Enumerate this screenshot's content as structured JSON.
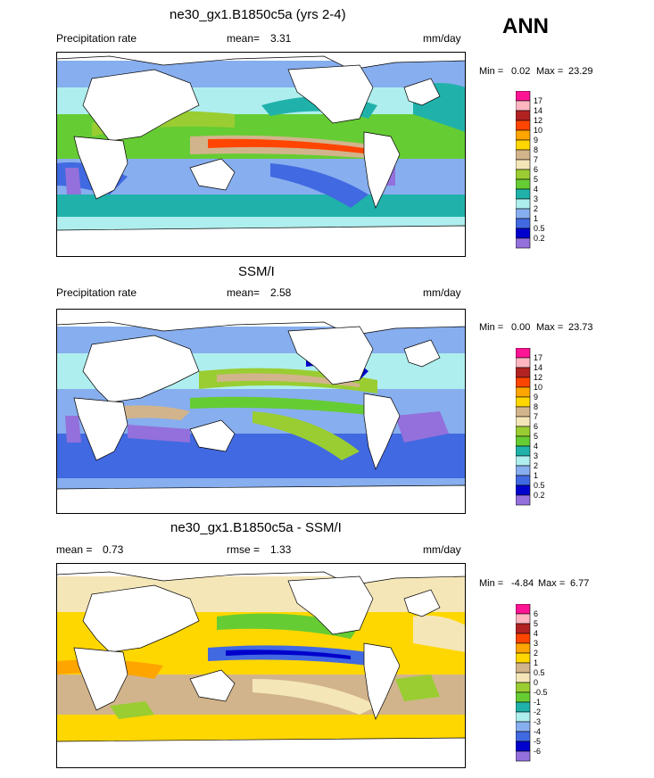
{
  "badge": "ANN",
  "panels": [
    {
      "title": "ne30_gx1.B1850c5a (yrs 2-4)",
      "left_label": "Precipitation rate",
      "mean_label": "mean=",
      "mean_value": "3.31",
      "units": "mm/day",
      "min_label": "Min =",
      "min_value": "0.02",
      "max_label": "Max =",
      "max_value": "23.29",
      "legend_levels": [
        "17",
        "14",
        "12",
        "10",
        "9",
        "8",
        "7",
        "6",
        "5",
        "4",
        "3",
        "2",
        "1",
        "0.5",
        "0.2"
      ]
    },
    {
      "title": "SSM/I",
      "left_label": "Precipitation rate",
      "mean_label": "mean=",
      "mean_value": "2.58",
      "units": "mm/day",
      "min_label": "Min =",
      "min_value": "0.00",
      "max_label": "Max =",
      "max_value": "23.73",
      "legend_levels": [
        "17",
        "14",
        "12",
        "10",
        "9",
        "8",
        "7",
        "6",
        "5",
        "4",
        "3",
        "2",
        "1",
        "0.5",
        "0.2"
      ]
    },
    {
      "title": "ne30_gx1.B1850c5a - SSM/I",
      "left_label": "mean =",
      "left_value": "0.73",
      "mean_label": "rmse =",
      "mean_value": "1.33",
      "units": "mm/day",
      "min_label": "Min =",
      "min_value": "-4.84",
      "max_label": "Max =",
      "max_value": "6.77",
      "legend_levels": [
        "6",
        "5",
        "4",
        "3",
        "2",
        "1",
        "0.5",
        "0",
        "-0.5",
        "-1",
        "-2",
        "-3",
        "-4",
        "-5",
        "-6"
      ]
    }
  ],
  "colors": {
    "precip_scale": [
      "#FF1493",
      "#FFB6C1",
      "#B22222",
      "#FF4500",
      "#FFA500",
      "#FFD700",
      "#D2B48C",
      "#F5E6B8",
      "#9ACD32",
      "#66CC33",
      "#20B2AA",
      "#AFEEEE",
      "#87AEEE",
      "#4169E1",
      "#0000CD",
      "#9370DB"
    ],
    "diff_scale": [
      "#FF1493",
      "#FFB6C1",
      "#B22222",
      "#FF4500",
      "#FFA500",
      "#FFD700",
      "#D2B48C",
      "#F5E6B8",
      "#9ACD32",
      "#66CC33",
      "#20B2AA",
      "#AFEEEE",
      "#87AEEE",
      "#4169E1",
      "#0000CD",
      "#9370DB"
    ]
  }
}
